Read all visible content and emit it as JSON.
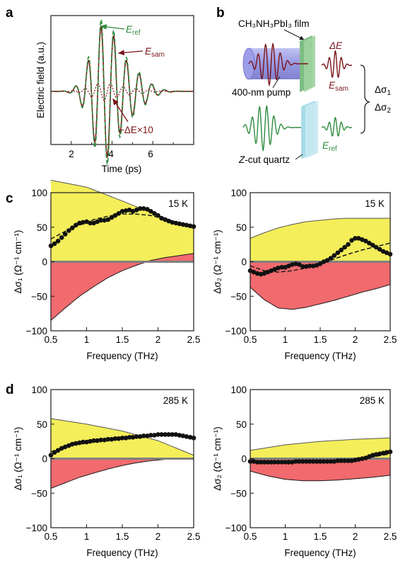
{
  "panels": [
    {
      "letter": "a"
    },
    {
      "letter": "b"
    },
    {
      "letter": "c"
    },
    {
      "letter": "d"
    }
  ],
  "panel_a": {
    "ylabel": "Electric field (a.u.)",
    "xlabel": "Time (ps)",
    "xticks": [
      "2",
      "4",
      "6"
    ],
    "labels": {
      "e_ref": "E",
      "e_ref_sub": "ref",
      "e_sam": "E",
      "e_sam_sub": "sam",
      "delta": "−ΔE×10"
    }
  },
  "panel_b": {
    "film_label": "CH₃NH₃PbI₃ film",
    "pump_label": "400-nm pump",
    "quartz_label_italic": "Z",
    "quartz_label_rest": "-cut quartz",
    "delta_e": "ΔE",
    "e_sam": "E",
    "e_sam_sub": "sam",
    "e_ref": "E",
    "e_ref_sub": "ref",
    "sigma1": "Δσ",
    "sigma1_sub": "1",
    "sigma2": "Δσ",
    "sigma2_sub": "2"
  },
  "colors": {
    "yellow_fill": "#f4ee5a",
    "red_fill": "#f06a6e",
    "ref_green": "#2e8b3d",
    "sam_darkred": "#7a1418",
    "pump_blue": "#8e8fdf",
    "quartz_blue": "#9fd6e3",
    "film_green": "#86c98a"
  },
  "chart_data": [
    {
      "id": "c1",
      "type": "scatter",
      "annotation": "15 K",
      "xlabel": "Frequency (THz)",
      "ylabel": "Δσ₁ (Ω⁻¹ cm⁻¹)",
      "xlim": [
        0.5,
        2.5
      ],
      "ylim": [
        -100,
        100
      ],
      "xticks": [
        "0.5",
        "1",
        "1.5",
        "2",
        "2.5"
      ],
      "yticks": [
        "−100",
        "−50",
        "0",
        "50",
        "100"
      ],
      "points_x": [
        0.5,
        0.55,
        0.6,
        0.65,
        0.7,
        0.75,
        0.8,
        0.85,
        0.9,
        0.95,
        1.0,
        1.05,
        1.1,
        1.15,
        1.2,
        1.25,
        1.3,
        1.35,
        1.4,
        1.45,
        1.5,
        1.55,
        1.6,
        1.65,
        1.7,
        1.75,
        1.8,
        1.85,
        1.9,
        1.95,
        2.0,
        2.05,
        2.1,
        2.15,
        2.2,
        2.25,
        2.3,
        2.35,
        2.4,
        2.45,
        2.5
      ],
      "points_y": [
        23,
        26,
        30,
        35,
        40,
        45,
        49,
        53,
        56,
        57,
        58,
        56,
        56,
        58,
        60,
        60,
        61,
        64,
        67,
        70,
        73,
        74,
        75,
        73,
        75,
        77,
        77,
        76,
        73,
        70,
        67,
        63,
        61,
        59,
        57,
        56,
        55,
        54,
        53,
        52,
        51
      ],
      "fit_x": [
        0.5,
        0.7,
        0.9,
        1.1,
        1.3,
        1.5,
        1.7,
        1.9,
        2.1,
        2.3,
        2.5
      ],
      "fit_y": [
        33,
        44,
        53,
        61,
        66,
        69,
        69,
        67,
        62,
        56,
        50
      ],
      "upper_x": [
        0.5,
        1.0,
        1.5,
        2.0,
        2.5
      ],
      "upper_y": [
        118,
        108,
        88,
        67,
        48
      ],
      "lower_x": [
        0.5,
        0.7,
        0.9,
        1.1,
        1.3,
        1.5,
        1.7,
        1.9,
        2.1,
        2.3,
        2.5
      ],
      "lower_y": [
        -85,
        -67,
        -50,
        -36,
        -23,
        -13,
        -5,
        2,
        6,
        9,
        12
      ]
    },
    {
      "id": "c2",
      "type": "scatter",
      "annotation": "15 K",
      "xlabel": "Frequency (THz)",
      "ylabel": "Δσ₂ (Ω⁻¹ cm⁻¹)",
      "xlim": [
        0.5,
        2.5
      ],
      "ylim": [
        -100,
        100
      ],
      "xticks": [
        "0.5",
        "1",
        "1.5",
        "2",
        "2.5"
      ],
      "yticks": [
        "−100",
        "−50",
        "0",
        "50",
        "100"
      ],
      "points_x": [
        0.5,
        0.55,
        0.6,
        0.65,
        0.7,
        0.75,
        0.8,
        0.85,
        0.9,
        0.95,
        1.0,
        1.05,
        1.1,
        1.15,
        1.2,
        1.25,
        1.3,
        1.35,
        1.4,
        1.45,
        1.5,
        1.55,
        1.6,
        1.65,
        1.7,
        1.75,
        1.8,
        1.85,
        1.9,
        1.95,
        2.0,
        2.05,
        2.1,
        2.15,
        2.2,
        2.25,
        2.3,
        2.35,
        2.4,
        2.45,
        2.5
      ],
      "points_y": [
        -13,
        -15,
        -17,
        -18,
        -17,
        -15,
        -13,
        -11,
        -9,
        -8,
        -8,
        -6,
        -4,
        -3,
        -4,
        -7,
        -7,
        -6,
        -6,
        -5,
        -3,
        0,
        2,
        5,
        9,
        13,
        17,
        21,
        25,
        31,
        34,
        34,
        32,
        30,
        27,
        24,
        21,
        18,
        15,
        13,
        11
      ],
      "fit_x": [
        0.5,
        0.7,
        0.9,
        1.1,
        1.3,
        1.5,
        1.7,
        1.9,
        2.1,
        2.3,
        2.5
      ],
      "fit_y": [
        -6,
        -13,
        -15,
        -13,
        -9,
        -3,
        4,
        11,
        17,
        22,
        27
      ],
      "upper_x": [
        0.5,
        0.7,
        0.9,
        1.1,
        1.3,
        1.5,
        1.7,
        1.9,
        2.1,
        2.3,
        2.5
      ],
      "upper_y": [
        34,
        42,
        49,
        54,
        58,
        60,
        62,
        63,
        63,
        63,
        63
      ],
      "lower_x": [
        0.5,
        0.7,
        0.9,
        1.1,
        1.3,
        1.5,
        1.7,
        1.9,
        2.1,
        2.3,
        2.5
      ],
      "lower_y": [
        -37,
        -55,
        -67,
        -69,
        -66,
        -61,
        -56,
        -50,
        -44,
        -39,
        -33
      ]
    },
    {
      "id": "d1",
      "type": "scatter",
      "annotation": "285 K",
      "xlabel": "Frequency (THz)",
      "ylabel": "Δσ₁ (Ω⁻¹ cm⁻¹)",
      "xlim": [
        0.5,
        2.5
      ],
      "ylim": [
        -100,
        100
      ],
      "xticks": [
        "0.5",
        "1",
        "1.5",
        "2",
        "2.5"
      ],
      "yticks": [
        "−100",
        "−50",
        "0",
        "50",
        "100"
      ],
      "points_x": [
        0.5,
        0.55,
        0.6,
        0.65,
        0.7,
        0.75,
        0.8,
        0.85,
        0.9,
        0.95,
        1.0,
        1.05,
        1.1,
        1.15,
        1.2,
        1.25,
        1.3,
        1.35,
        1.4,
        1.45,
        1.5,
        1.55,
        1.6,
        1.65,
        1.7,
        1.75,
        1.8,
        1.85,
        1.9,
        1.95,
        2.0,
        2.05,
        2.1,
        2.15,
        2.2,
        2.25,
        2.3,
        2.35,
        2.4,
        2.45,
        2.5
      ],
      "points_y": [
        5,
        9,
        12,
        15,
        17,
        19,
        21,
        22,
        23,
        24,
        24,
        25,
        26,
        26,
        27,
        27,
        28,
        28,
        29,
        29,
        30,
        30,
        31,
        31,
        32,
        32,
        33,
        33,
        34,
        34,
        35,
        35,
        35,
        35,
        35,
        35,
        34,
        33,
        32,
        31,
        30
      ],
      "fit_x": [
        0.5,
        0.7,
        0.9,
        1.1,
        1.3,
        1.5,
        1.7,
        1.9,
        2.1,
        2.3,
        2.5
      ],
      "fit_y": [
        10,
        17,
        21,
        24,
        27,
        29,
        31,
        33,
        34,
        34,
        32
      ],
      "upper_x": [
        0.5,
        1.0,
        1.5,
        2.0,
        2.5
      ],
      "upper_y": [
        58,
        50,
        40,
        26,
        5
      ],
      "lower_x": [
        0.5,
        0.7,
        0.9,
        1.1,
        1.3,
        1.5,
        1.7,
        1.9,
        2.1,
        2.3,
        2.5
      ],
      "lower_y": [
        -43,
        -35,
        -27,
        -21,
        -15,
        -10,
        -6,
        -3,
        -1,
        0,
        0
      ]
    },
    {
      "id": "d2",
      "type": "scatter",
      "annotation": "285 K",
      "xlabel": "Frequency (THz)",
      "ylabel": "Δσ₂ (Ω⁻¹ cm⁻¹)",
      "xlim": [
        0.5,
        2.5
      ],
      "ylim": [
        -100,
        100
      ],
      "xticks": [
        "0.5",
        "1",
        "1.5",
        "2",
        "2.5"
      ],
      "yticks": [
        "−100",
        "−50",
        "0",
        "50",
        "100"
      ],
      "points_x": [
        0.5,
        0.55,
        0.6,
        0.65,
        0.7,
        0.75,
        0.8,
        0.85,
        0.9,
        0.95,
        1.0,
        1.05,
        1.1,
        1.15,
        1.2,
        1.25,
        1.3,
        1.35,
        1.4,
        1.45,
        1.5,
        1.55,
        1.6,
        1.65,
        1.7,
        1.75,
        1.8,
        1.85,
        1.9,
        1.95,
        2.0,
        2.05,
        2.1,
        2.15,
        2.2,
        2.25,
        2.3,
        2.35,
        2.4,
        2.45,
        2.5
      ],
      "points_y": [
        -4,
        -4,
        -5,
        -5,
        -5,
        -5,
        -5,
        -5,
        -5,
        -5,
        -5,
        -5,
        -5,
        -4,
        -4,
        -4,
        -4,
        -4,
        -4,
        -4,
        -4,
        -4,
        -4,
        -4,
        -4,
        -3,
        -3,
        -3,
        -3,
        -3,
        -2,
        -1,
        0,
        1,
        3,
        5,
        6,
        7,
        8,
        9,
        10
      ],
      "fit_x": [
        0.5,
        1.0,
        1.5,
        2.0,
        2.5
      ],
      "fit_y": [
        -4,
        -5,
        -4,
        -2,
        7
      ],
      "upper_x": [
        0.5,
        1.0,
        1.5,
        2.0,
        2.5
      ],
      "upper_y": [
        12,
        20,
        25,
        28,
        30
      ],
      "lower_x": [
        0.5,
        0.75,
        1.0,
        1.25,
        1.5,
        1.75,
        2.0,
        2.25,
        2.5
      ],
      "lower_y": [
        -18,
        -25,
        -30,
        -32,
        -32,
        -31,
        -29,
        -27,
        -24
      ]
    }
  ]
}
